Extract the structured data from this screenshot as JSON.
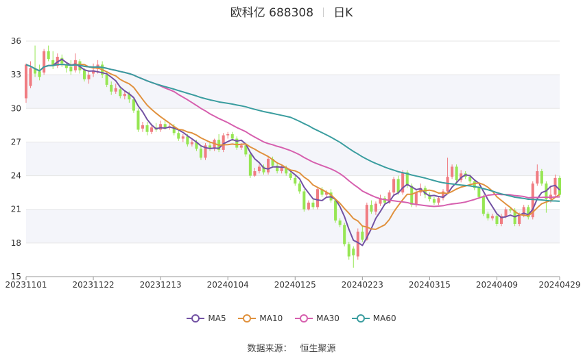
{
  "header": {
    "title": "欧科亿 688308",
    "period": "日K"
  },
  "source": {
    "label": "数据来源：",
    "provider": "恒生聚源"
  },
  "colors": {
    "up": "#f07c82",
    "down": "#96e653",
    "ma5": "#7251a3",
    "ma10": "#e0913d",
    "ma30": "#d65fae",
    "ma60": "#3a9d9f",
    "band": "#f4f5fa",
    "grid": "#e6e6e6"
  },
  "chart_data": {
    "type": "candlestick",
    "ylim": [
      15,
      36
    ],
    "yticks": [
      15,
      18,
      21,
      24,
      27,
      30,
      33,
      36
    ],
    "xtick_labels": [
      "20231101",
      "20231122",
      "20231213",
      "20240104",
      "20240125",
      "20240223",
      "20240315",
      "20240409",
      "20240429"
    ],
    "legend": [
      "MA5",
      "MA10",
      "MA30",
      "MA60"
    ],
    "series_names": [
      "MA5",
      "MA10",
      "MA30",
      "MA60"
    ],
    "dates": [
      "20231101",
      "20231102",
      "20231103",
      "20231106",
      "20231107",
      "20231108",
      "20231109",
      "20231110",
      "20231113",
      "20231114",
      "20231115",
      "20231116",
      "20231117",
      "20231120",
      "20231121",
      "20231122",
      "20231123",
      "20231124",
      "20231127",
      "20231128",
      "20231129",
      "20231130",
      "20231201",
      "20231204",
      "20231205",
      "20231206",
      "20231207",
      "20231208",
      "20231211",
      "20231212",
      "20231213",
      "20231214",
      "20231215",
      "20231218",
      "20231219",
      "20231220",
      "20231221",
      "20231222",
      "20231225",
      "20231226",
      "20231227",
      "20231228",
      "20231229",
      "20240102",
      "20240103",
      "20240104",
      "20240105",
      "20240108",
      "20240109",
      "20240110",
      "20240111",
      "20240112",
      "20240115",
      "20240116",
      "20240117",
      "20240118",
      "20240119",
      "20240122",
      "20240123",
      "20240124",
      "20240125",
      "20240126",
      "20240129",
      "20240130",
      "20240131",
      "20240201",
      "20240202",
      "20240205",
      "20240206",
      "20240207",
      "20240208",
      "20240219",
      "20240220",
      "20240221",
      "20240222",
      "20240223",
      "20240226",
      "20240227",
      "20240228",
      "20240229",
      "20240301",
      "20240304",
      "20240305",
      "20240306",
      "20240307",
      "20240308",
      "20240311",
      "20240312",
      "20240313",
      "20240314",
      "20240315",
      "20240318",
      "20240319",
      "20240320",
      "20240321",
      "20240322",
      "20240325",
      "20240326",
      "20240327",
      "20240328",
      "20240329",
      "20240401",
      "20240402",
      "20240403",
      "20240408",
      "20240409",
      "20240410",
      "20240411",
      "20240412",
      "20240415",
      "20240416",
      "20240417",
      "20240418",
      "20240419",
      "20240422",
      "20240423",
      "20240424",
      "20240425",
      "20240426",
      "20240429"
    ],
    "ohlc": [
      [
        30.9,
        33.9,
        30.5,
        34.0
      ],
      [
        32.0,
        33.6,
        31.8,
        34.2
      ],
      [
        33.6,
        33.1,
        32.8,
        35.6
      ],
      [
        33.3,
        32.8,
        32.5,
        33.9
      ],
      [
        33.2,
        35.1,
        33.0,
        35.3
      ],
      [
        35.1,
        34.4,
        34.2,
        35.6
      ],
      [
        34.3,
        33.8,
        33.5,
        35.1
      ],
      [
        33.8,
        34.6,
        33.6,
        34.9
      ],
      [
        34.5,
        34.0,
        33.7,
        34.8
      ],
      [
        33.9,
        33.6,
        33.2,
        34.1
      ],
      [
        33.7,
        33.3,
        33.0,
        34.3
      ],
      [
        33.4,
        34.3,
        33.2,
        34.9
      ],
      [
        34.2,
        33.4,
        33.1,
        34.4
      ],
      [
        33.4,
        32.6,
        32.4,
        33.6
      ],
      [
        32.6,
        33.0,
        32.2,
        33.4
      ],
      [
        33.1,
        33.4,
        32.8,
        34.0
      ],
      [
        33.5,
        33.9,
        33.1,
        34.3
      ],
      [
        33.9,
        33.0,
        32.7,
        34.2
      ],
      [
        33.0,
        32.1,
        31.9,
        33.2
      ],
      [
        32.1,
        31.5,
        31.2,
        32.4
      ],
      [
        31.5,
        31.8,
        31.3,
        32.2
      ],
      [
        31.7,
        31.1,
        30.9,
        31.9
      ],
      [
        31.1,
        31.3,
        30.8,
        31.6
      ],
      [
        31.3,
        30.8,
        30.5,
        31.5
      ],
      [
        30.8,
        29.8,
        29.6,
        31.0
      ],
      [
        29.8,
        28.1,
        27.9,
        30.0
      ],
      [
        28.2,
        28.5,
        27.9,
        28.8
      ],
      [
        28.5,
        27.9,
        27.6,
        28.8
      ],
      [
        27.9,
        28.3,
        27.7,
        28.6
      ],
      [
        28.3,
        28.1,
        27.9,
        28.7
      ],
      [
        28.1,
        28.6,
        27.9,
        28.9
      ],
      [
        28.6,
        28.3,
        28.1,
        28.9
      ],
      [
        28.3,
        28.4,
        28.1,
        28.6
      ],
      [
        28.4,
        27.8,
        27.6,
        28.6
      ],
      [
        27.8,
        27.3,
        27.1,
        28.0
      ],
      [
        27.3,
        27.5,
        27.0,
        27.7
      ],
      [
        27.5,
        26.8,
        26.6,
        27.7
      ],
      [
        26.8,
        27.0,
        26.6,
        27.2
      ],
      [
        27.0,
        26.4,
        26.2,
        27.2
      ],
      [
        26.4,
        25.6,
        25.4,
        26.6
      ],
      [
        25.6,
        26.7,
        25.4,
        26.9
      ],
      [
        26.7,
        26.4,
        26.2,
        27.0
      ],
      [
        26.4,
        27.2,
        26.2,
        27.3
      ],
      [
        27.2,
        26.3,
        26.1,
        27.7
      ],
      [
        26.3,
        27.6,
        26.1,
        27.8
      ],
      [
        27.6,
        27.7,
        27.3,
        27.9
      ],
      [
        27.7,
        27.3,
        27.1,
        27.9
      ],
      [
        27.3,
        26.5,
        26.3,
        27.5
      ],
      [
        26.5,
        26.7,
        26.3,
        26.9
      ],
      [
        26.7,
        25.9,
        25.7,
        26.9
      ],
      [
        25.9,
        24.0,
        23.8,
        26.1
      ],
      [
        24.0,
        24.4,
        23.9,
        24.7
      ],
      [
        24.4,
        24.8,
        24.2,
        25.0
      ],
      [
        24.8,
        24.3,
        24.1,
        25.0
      ],
      [
        24.3,
        25.5,
        24.1,
        25.7
      ],
      [
        25.5,
        24.9,
        24.7,
        25.7
      ],
      [
        24.9,
        24.4,
        24.2,
        25.1
      ],
      [
        24.4,
        24.7,
        24.2,
        24.9
      ],
      [
        24.7,
        24.2,
        24.0,
        24.9
      ],
      [
        24.2,
        23.8,
        23.6,
        24.4
      ],
      [
        23.8,
        23.3,
        23.1,
        24.0
      ],
      [
        23.3,
        22.6,
        22.4,
        23.5
      ],
      [
        22.6,
        21.0,
        20.8,
        22.8
      ],
      [
        21.0,
        21.6,
        20.9,
        21.8
      ],
      [
        21.6,
        21.2,
        21.0,
        21.9
      ],
      [
        21.2,
        22.8,
        21.0,
        23.0
      ],
      [
        22.8,
        22.3,
        22.1,
        23.0
      ],
      [
        22.3,
        22.5,
        22.1,
        22.7
      ],
      [
        22.5,
        21.8,
        21.6,
        22.8
      ],
      [
        21.8,
        20.0,
        19.8,
        22.0
      ],
      [
        20.0,
        19.6,
        19.4,
        20.2
      ],
      [
        19.6,
        17.9,
        17.7,
        19.8
      ],
      [
        17.9,
        16.8,
        16.5,
        18.1
      ],
      [
        17.5,
        16.9,
        15.8,
        17.7
      ],
      [
        16.8,
        19.0,
        16.5,
        19.3
      ],
      [
        19.0,
        18.3,
        18.1,
        19.5
      ],
      [
        18.3,
        21.4,
        18.2,
        21.6
      ],
      [
        21.4,
        20.8,
        20.6,
        21.8
      ],
      [
        20.8,
        21.5,
        20.5,
        21.7
      ],
      [
        21.5,
        22.0,
        21.3,
        22.3
      ],
      [
        22.0,
        21.6,
        21.4,
        22.2
      ],
      [
        21.6,
        22.5,
        21.5,
        22.7
      ],
      [
        22.5,
        23.7,
        22.3,
        23.9
      ],
      [
        23.7,
        22.5,
        22.3,
        24.0
      ],
      [
        22.5,
        24.3,
        22.3,
        24.5
      ],
      [
        24.3,
        23.1,
        22.9,
        24.5
      ],
      [
        23.1,
        21.4,
        21.2,
        23.3
      ],
      [
        21.4,
        22.5,
        21.2,
        22.8
      ],
      [
        22.5,
        22.9,
        22.2,
        23.3
      ],
      [
        22.9,
        22.3,
        22.0,
        23.1
      ],
      [
        22.3,
        21.9,
        21.7,
        22.5
      ],
      [
        21.9,
        21.6,
        21.4,
        22.1
      ],
      [
        21.6,
        22.0,
        21.4,
        22.2
      ],
      [
        22.0,
        22.6,
        21.8,
        22.8
      ],
      [
        22.6,
        23.9,
        22.4,
        25.6
      ],
      [
        23.9,
        24.8,
        23.7,
        25.0
      ],
      [
        24.8,
        23.6,
        23.4,
        25.0
      ],
      [
        23.6,
        24.2,
        23.4,
        24.5
      ],
      [
        24.2,
        23.9,
        23.7,
        24.4
      ],
      [
        23.9,
        23.5,
        23.3,
        24.1
      ],
      [
        23.5,
        22.9,
        22.7,
        23.7
      ],
      [
        22.9,
        22.1,
        21.9,
        23.1
      ],
      [
        22.1,
        20.6,
        20.4,
        22.3
      ],
      [
        20.6,
        20.2,
        20.0,
        20.8
      ],
      [
        20.2,
        20.4,
        20.0,
        20.6
      ],
      [
        20.4,
        19.7,
        19.5,
        20.6
      ],
      [
        19.7,
        20.4,
        19.5,
        20.6
      ],
      [
        20.4,
        21.0,
        20.2,
        21.2
      ],
      [
        21.0,
        20.9,
        20.7,
        21.2
      ],
      [
        20.9,
        19.7,
        19.5,
        21.1
      ],
      [
        19.7,
        20.5,
        19.5,
        20.7
      ],
      [
        20.5,
        21.2,
        20.3,
        21.4
      ],
      [
        21.2,
        20.3,
        20.1,
        21.4
      ],
      [
        20.3,
        23.3,
        20.1,
        23.5
      ],
      [
        23.3,
        24.4,
        23.1,
        25.0
      ],
      [
        24.4,
        23.3,
        23.1,
        24.6
      ],
      [
        23.3,
        21.9,
        20.7,
        23.5
      ],
      [
        21.9,
        22.3,
        21.6,
        23.1
      ],
      [
        22.3,
        23.8,
        22.1,
        24.1
      ],
      [
        23.8,
        22.3,
        22.1,
        24.0
      ]
    ]
  }
}
